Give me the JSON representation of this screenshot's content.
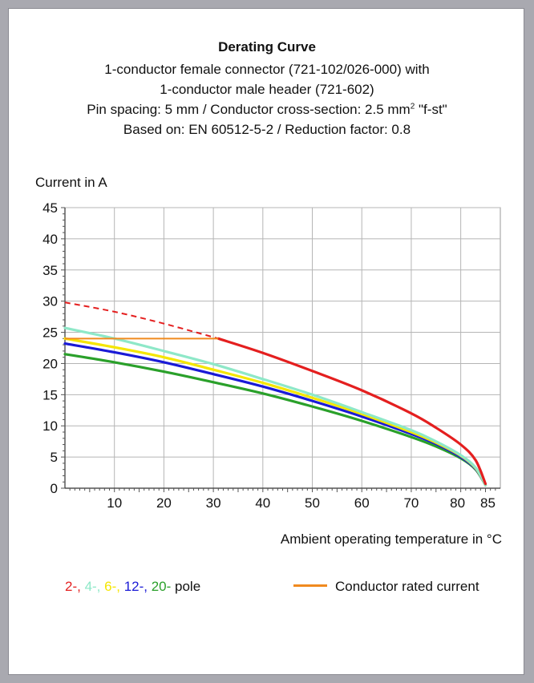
{
  "header": {
    "title": "Derating Curve",
    "line1": "1-conductor female connector (721-102/026-000) with",
    "line2": "1-conductor male header (721-602)",
    "line3_a": "Pin spacing: 5 mm / Conductor cross-section: 2.5 mm",
    "line3_sup": "2",
    "line3_b": " \"f-st\"",
    "line4": "Based on: EN 60512-5-2 / Reduction factor: 0.8"
  },
  "chart_data": {
    "type": "line",
    "ylabel": "Current in A",
    "xlabel": "Ambient operating temperature in °C",
    "xlim": [
      0,
      88
    ],
    "ylim": [
      0,
      45
    ],
    "x_ticks": [
      "10",
      "20",
      "30",
      "40",
      "50",
      "60",
      "70",
      "80",
      "85"
    ],
    "y_ticks": [
      "0",
      "5",
      "10",
      "15",
      "20",
      "25",
      "30",
      "35",
      "40",
      "45"
    ],
    "grid": true,
    "series": [
      {
        "name": "2-",
        "color": "#e41f1f",
        "x": [
          0,
          10,
          20,
          31,
          40,
          50,
          60,
          70,
          75,
          80,
          83,
          85
        ],
        "y": [
          29.8,
          28.3,
          26.4,
          24,
          21.7,
          18.8,
          15.7,
          12,
          9.7,
          7,
          4.5,
          0.7
        ],
        "dashed_until_x": 31
      },
      {
        "name": "4-",
        "color": "#8ee8c8",
        "x": [
          0,
          10,
          20,
          30,
          40,
          50,
          60,
          70,
          75,
          80,
          83,
          85
        ],
        "y": [
          25.7,
          24,
          22,
          19.9,
          17.5,
          15,
          12.2,
          9.3,
          7.5,
          5.3,
          3.3,
          0.5
        ]
      },
      {
        "name": "6-",
        "color": "#f5e600",
        "x": [
          0,
          10,
          20,
          30,
          40,
          50,
          60,
          70,
          75,
          80,
          83,
          85
        ],
        "y": [
          24,
          22.6,
          21,
          19,
          16.9,
          14.5,
          11.9,
          9,
          7.3,
          5.2,
          3.2,
          0.5
        ]
      },
      {
        "name": "12-",
        "color": "#1a1ad6",
        "x": [
          0,
          10,
          20,
          30,
          40,
          50,
          60,
          70,
          75,
          80,
          83,
          85
        ],
        "y": [
          23.2,
          21.8,
          20.2,
          18.3,
          16.3,
          14,
          11.5,
          8.7,
          7.1,
          5,
          3.1,
          0.5
        ]
      },
      {
        "name": "20-",
        "color": "#2aa02a",
        "x": [
          0,
          10,
          20,
          30,
          40,
          50,
          60,
          70,
          75,
          80,
          83,
          85
        ],
        "y": [
          21.5,
          20.2,
          18.7,
          17,
          15.2,
          13.1,
          10.8,
          8.2,
          6.7,
          4.8,
          3,
          0.5
        ]
      }
    ],
    "rated_current": {
      "value": 24,
      "x_end": 31,
      "color": "#f08a1f"
    }
  },
  "legend": {
    "poles": [
      {
        "text": "2-,",
        "color": "#e41f1f"
      },
      {
        "text": " 4-,",
        "color": "#8ee8c8"
      },
      {
        "text": " 6-,",
        "color": "#f5e600"
      },
      {
        "text": " 12-,",
        "color": "#1a1ad6"
      },
      {
        "text": " 20-",
        "color": "#2aa02a"
      },
      {
        "text": " pole",
        "color": "#111111"
      }
    ],
    "rated_label": "Conductor rated current"
  }
}
